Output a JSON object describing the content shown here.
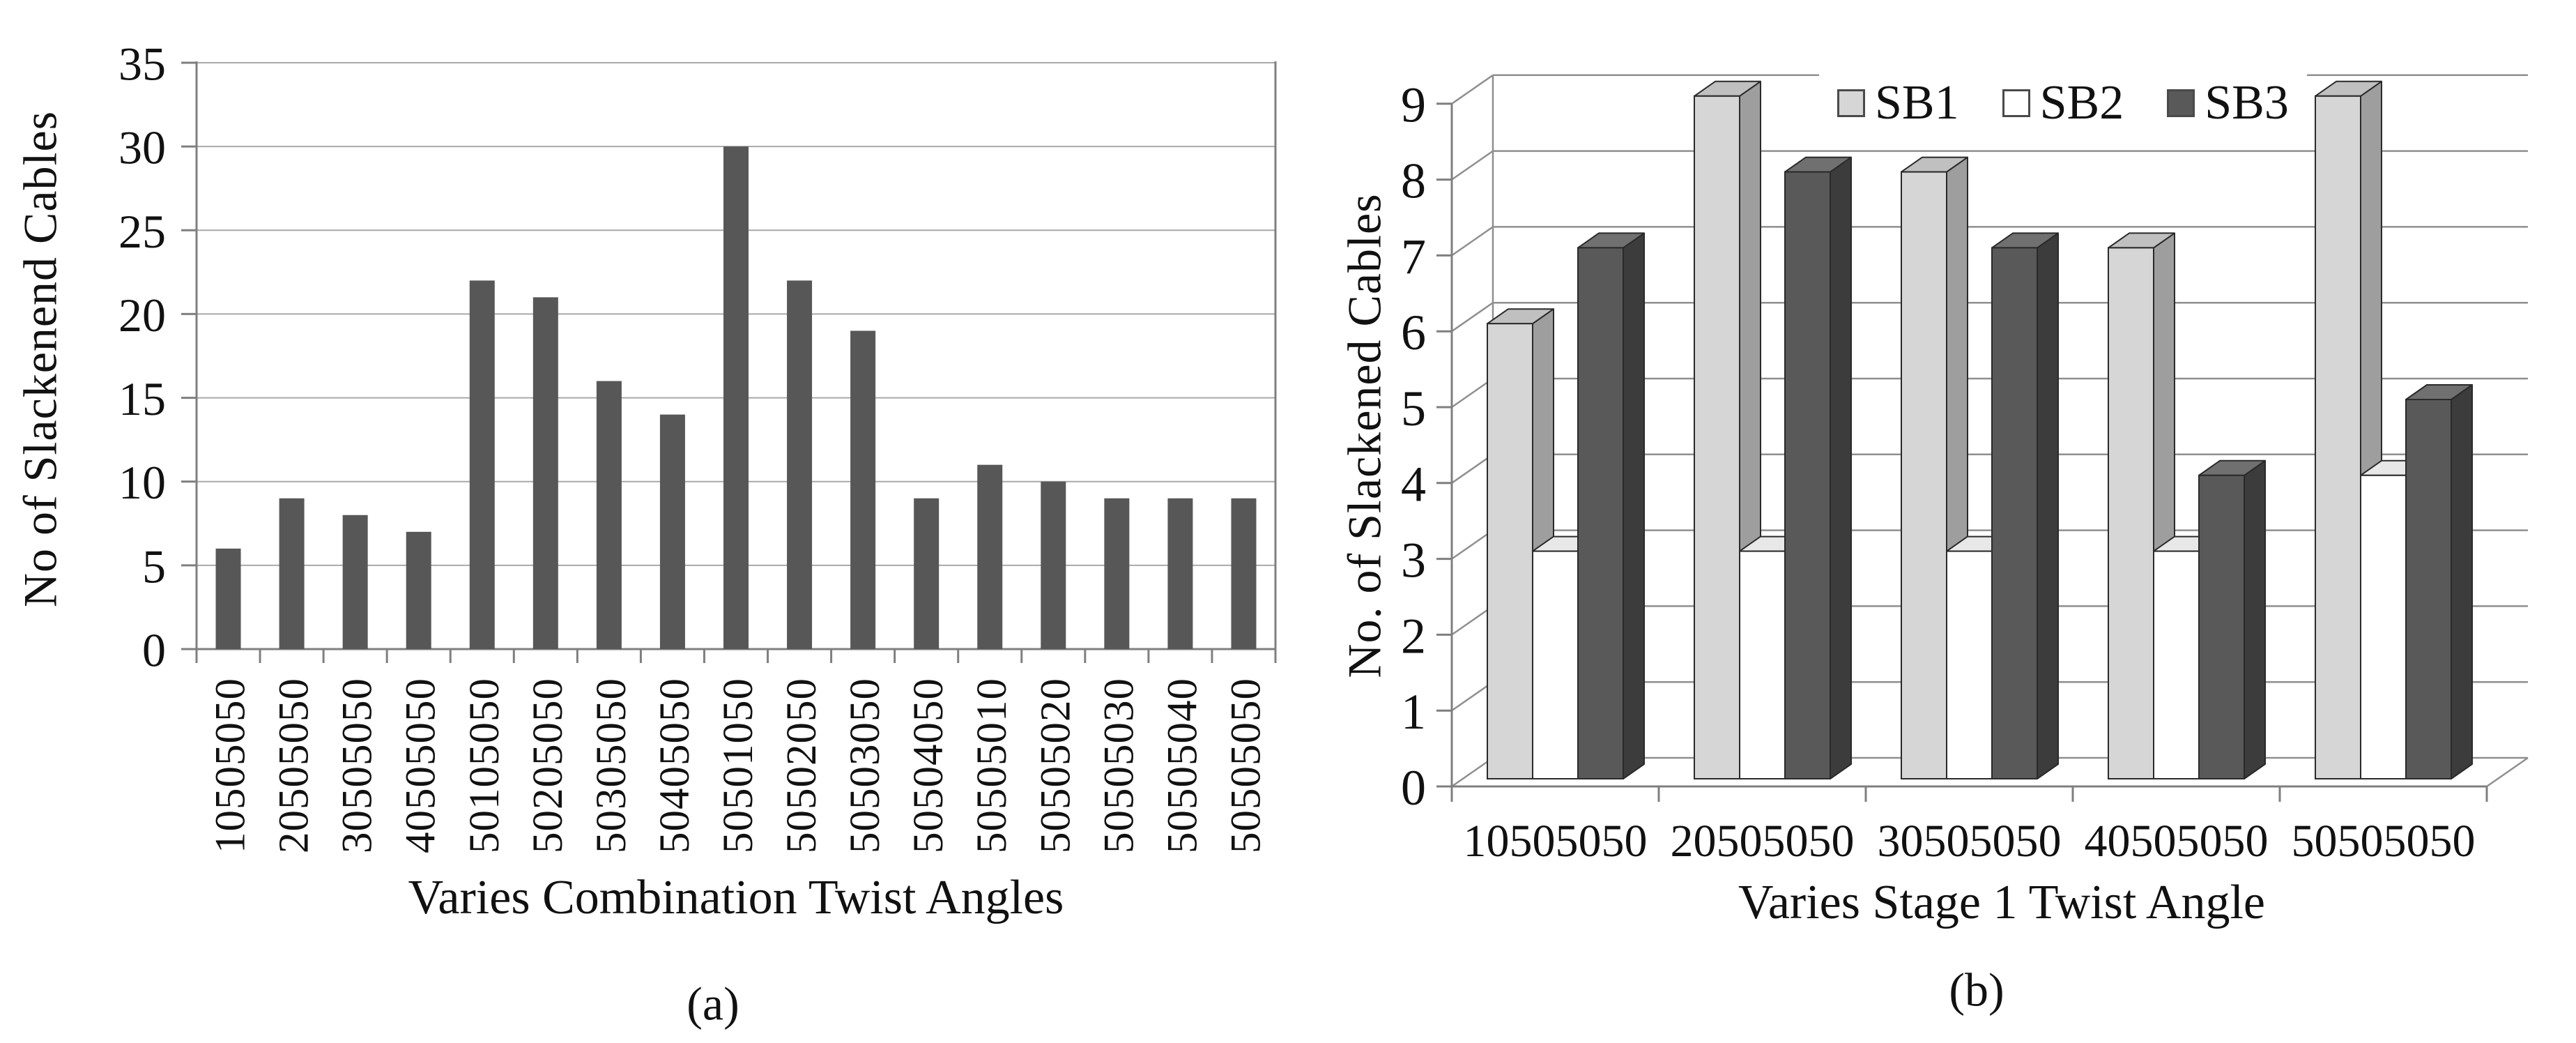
{
  "figure": {
    "background": "#ffffff"
  },
  "colors": {
    "axis_line": "#7f7f7f",
    "gridline": "#a9a9a9",
    "gridline_3d": "#8f8f8f",
    "bar_outline": "#2a2a2a",
    "text": "#111111",
    "bar_color_chart_a": "#575757"
  },
  "chart_data": [
    {
      "id": "a",
      "type": "bar",
      "caption": "(a)",
      "xlabel": "Varies Combination Twist Angles",
      "ylabel": "No of Slackenend Cables",
      "categories": [
        "10505050",
        "20505050",
        "30505050",
        "40505050",
        "50105050",
        "50205050",
        "50305050",
        "50405050",
        "50501050",
        "50502050",
        "50503050",
        "50504050",
        "50505010",
        "50505020",
        "50505030",
        "50505040",
        "50505050"
      ],
      "values": [
        6,
        9,
        8,
        7,
        22,
        21,
        16,
        14,
        30,
        22,
        19,
        9,
        11,
        10,
        9,
        9,
        9
      ],
      "ylim": [
        0,
        35
      ],
      "ytick_step": 5,
      "ytick_labels": [
        "0",
        "5",
        "10",
        "15",
        "20",
        "25",
        "30",
        "35"
      ],
      "grid": true,
      "legend_position": "none",
      "bar_color": "#575757"
    },
    {
      "id": "b",
      "type": "bar3d",
      "caption": "(b)",
      "xlabel": "Varies Stage 1 Twist Angle",
      "ylabel": "No. of Slackened Cables",
      "categories": [
        "10505050",
        "20505050",
        "30505050",
        "40505050",
        "50505050"
      ],
      "series": [
        {
          "name": "SB1",
          "values": [
            6,
            9,
            8,
            7,
            9
          ],
          "front": "#d6d6d6",
          "top": "#c0c0c0",
          "side": "#9e9e9e"
        },
        {
          "name": "SB2",
          "values": [
            3,
            3,
            3,
            3,
            4
          ],
          "front": "#ffffff",
          "top": "#e8e8e8",
          "side": "#bdbdbd"
        },
        {
          "name": "SB3",
          "values": [
            7,
            8,
            7,
            4,
            5
          ],
          "front": "#595959",
          "top": "#707070",
          "side": "#3c3c3c"
        }
      ],
      "ylim": [
        0,
        9
      ],
      "ytick_step": 1,
      "ytick_labels": [
        "0",
        "1",
        "2",
        "3",
        "4",
        "5",
        "6",
        "7",
        "8",
        "9"
      ],
      "grid": true,
      "legend_position": "top"
    }
  ]
}
